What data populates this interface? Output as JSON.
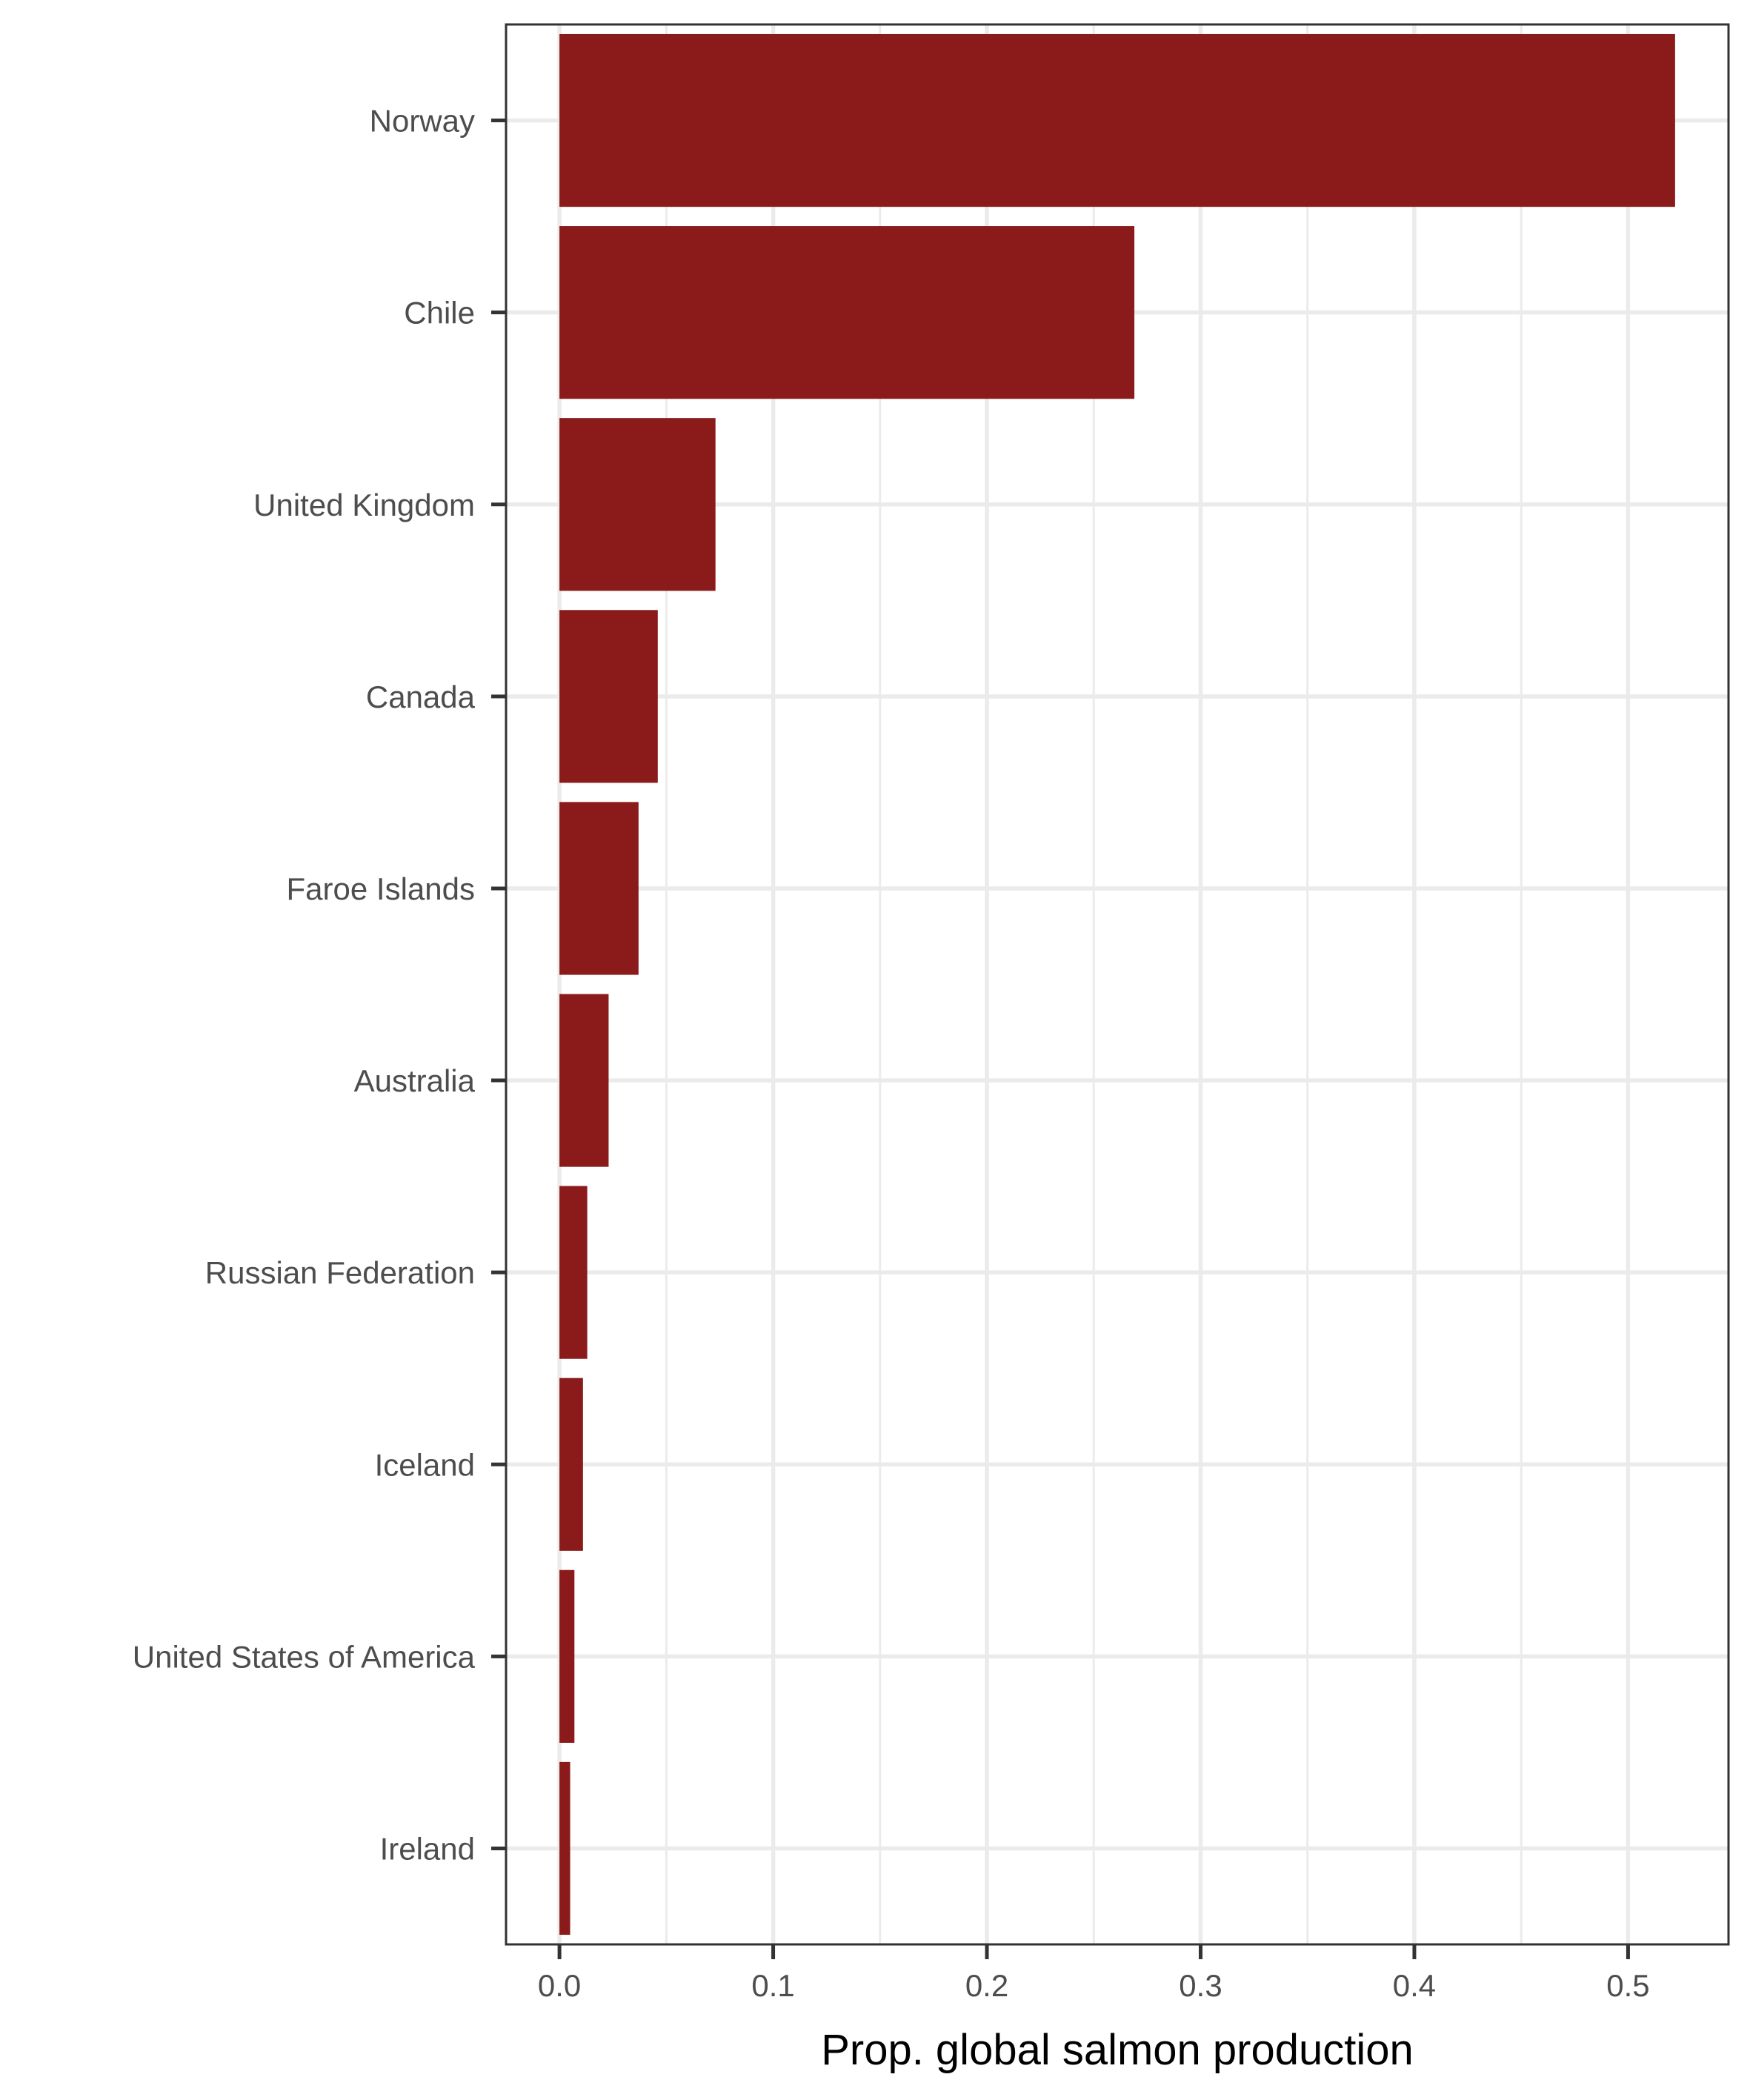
{
  "chart_data": {
    "type": "bar",
    "orientation": "horizontal",
    "title": "",
    "xlabel": "Prop. global salmon production",
    "ylabel": "",
    "categories": [
      "Norway",
      "Chile",
      "United Kingdom",
      "Canada",
      "Faroe Islands",
      "Australia",
      "Russian Federation",
      "Iceland",
      "United States of America",
      "Ireland"
    ],
    "values": [
      0.522,
      0.269,
      0.073,
      0.046,
      0.037,
      0.023,
      0.013,
      0.011,
      0.007,
      0.005
    ],
    "xlim": [
      -0.025,
      0.547
    ],
    "xticks": [
      0.0,
      0.1,
      0.2,
      0.3,
      0.4,
      0.5
    ],
    "xtick_labels": [
      "0.0",
      "0.1",
      "0.2",
      "0.3",
      "0.4",
      "0.5"
    ],
    "grid": true,
    "legend": "none",
    "colors": {
      "bar": "#8b1a1a",
      "grid": "#ebebeb",
      "axis": "#333333",
      "tick_text": "#4d4d4d",
      "title_text": "#000000"
    }
  }
}
